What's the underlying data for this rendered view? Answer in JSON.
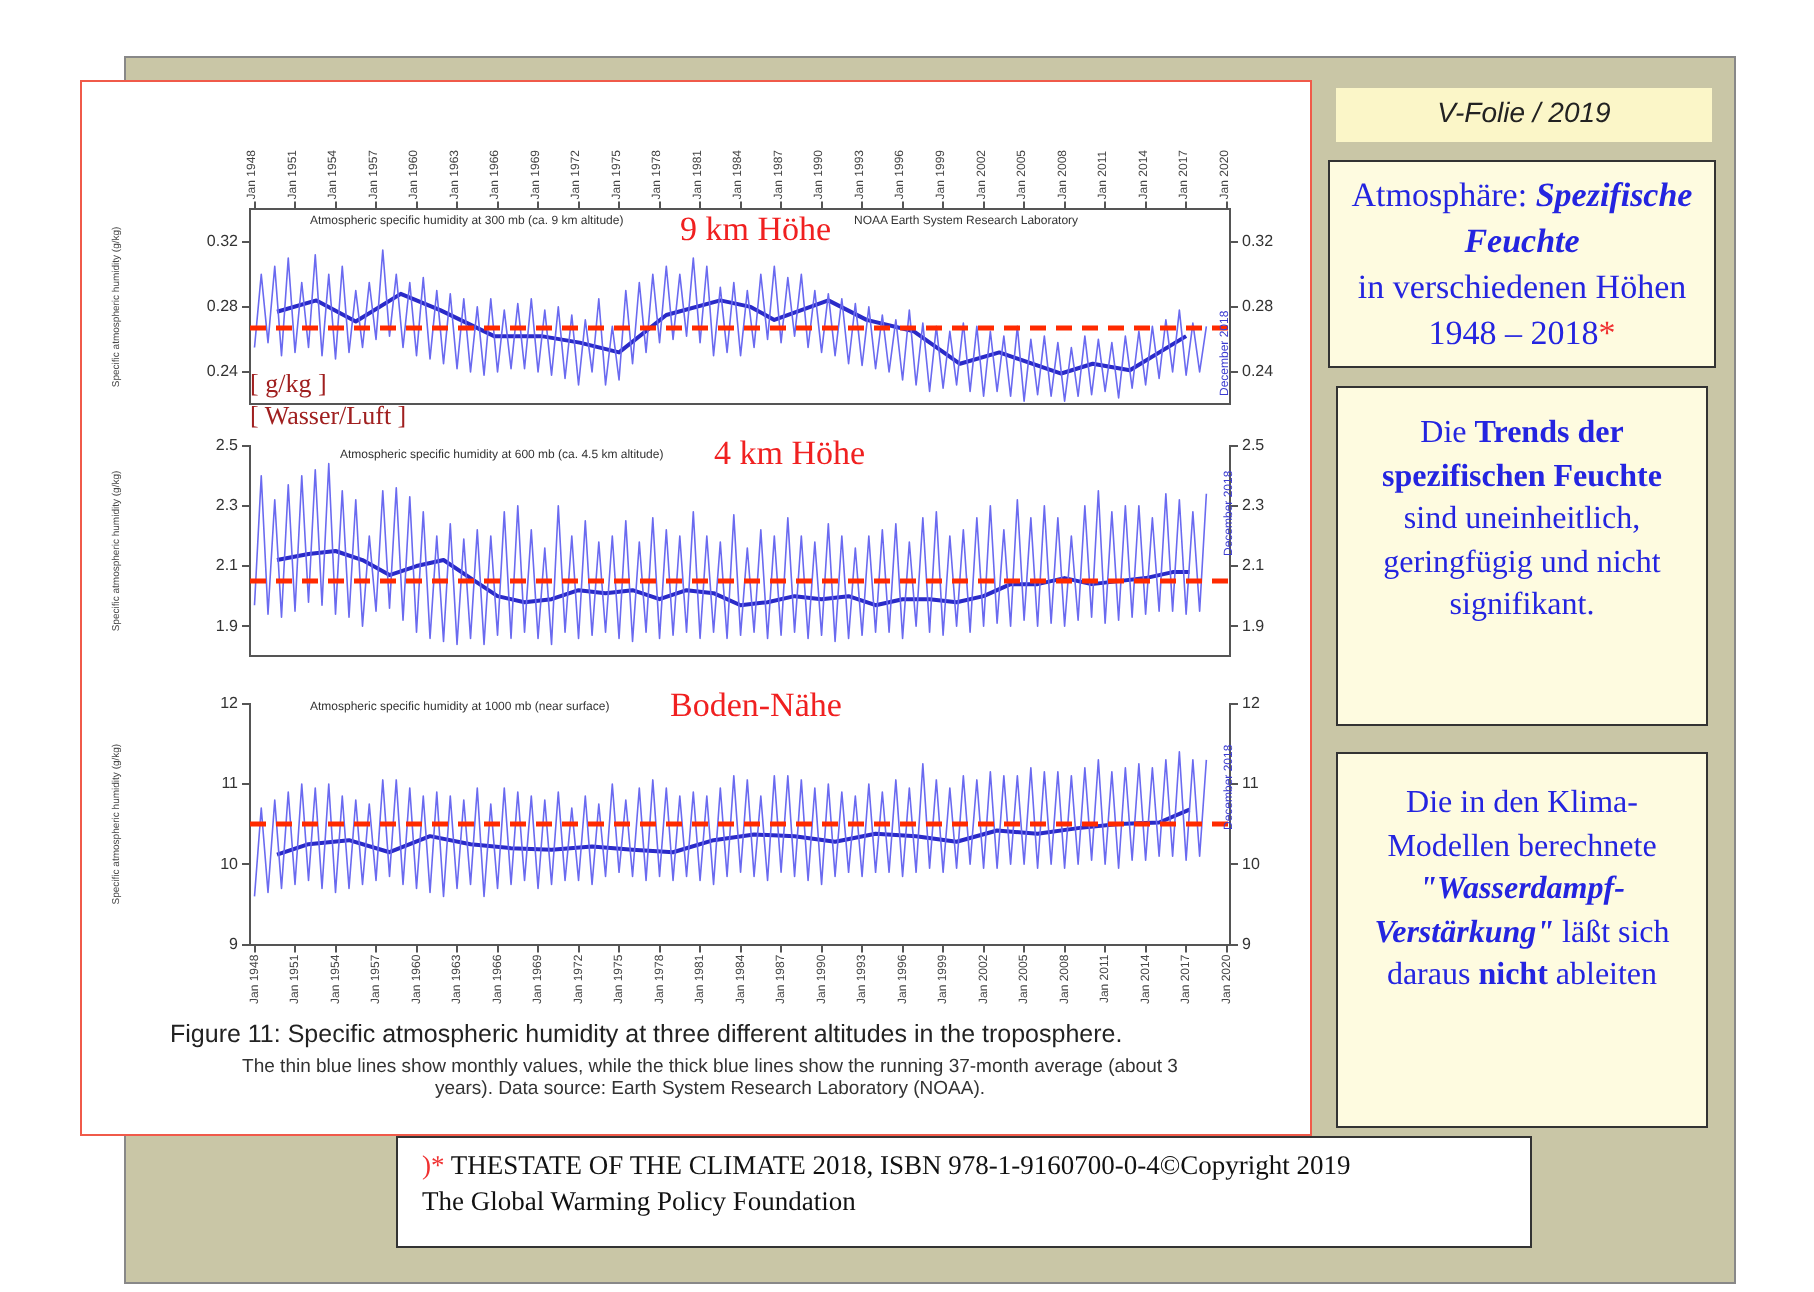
{
  "chart_data": [
    {
      "type": "line",
      "ylabel": "Specific atmospheric humidity (g/kg)",
      "xlim": [
        "1947-09",
        "2020-04"
      ],
      "x2lim": [
        "1947-09",
        "2020-04"
      ],
      "x2ticks": [
        {
          "value": "1948-01",
          "label": "Jan 1948"
        },
        {
          "value": "1951-01",
          "label": "Jan 1951"
        },
        {
          "value": "1954-01",
          "label": "Jan 1954"
        },
        {
          "value": "1957-01",
          "label": "Jan 1957"
        },
        {
          "value": "1960-01",
          "label": "Jan 1960"
        },
        {
          "value": "1963-01",
          "label": "Jan 1963"
        },
        {
          "value": "1966-01",
          "label": "Jan 1966"
        },
        {
          "value": "1969-01",
          "label": "Jan 1969"
        },
        {
          "value": "1972-01",
          "label": "Jan 1972"
        },
        {
          "value": "1975-01",
          "label": "Jan 1975"
        },
        {
          "value": "1978-01",
          "label": "Jan 1978"
        },
        {
          "value": "1981-01",
          "label": "Jan 1981"
        },
        {
          "value": "1984-01",
          "label": "Jan 1984"
        },
        {
          "value": "1987-01",
          "label": "Jan 1987"
        },
        {
          "value": "1990-01",
          "label": "Jan 1990"
        },
        {
          "value": "1993-01",
          "label": "Jan 1993"
        },
        {
          "value": "1996-01",
          "label": "Jan 1996"
        },
        {
          "value": "1999-01",
          "label": "Jan 1999"
        },
        {
          "value": "2002-01",
          "label": "Jan 2002"
        },
        {
          "value": "2005-01",
          "label": "Jan 2005"
        },
        {
          "value": "2008-01",
          "label": "Jan 2008"
        },
        {
          "value": "2011-01",
          "label": "Jan 2011"
        },
        {
          "value": "2014-01",
          "label": "Jan 2014"
        },
        {
          "value": "2017-01",
          "label": "Jan 2017"
        },
        {
          "value": "2020-01",
          "label": "Jan 2020"
        }
      ],
      "ylim": [
        0.22,
        0.34
      ],
      "yticks": [
        0.24,
        0.28,
        0.32
      ],
      "y2lim": [
        0.22,
        0.34
      ],
      "y2ticks": [
        0.24,
        0.28,
        0.32
      ],
      "x": [
        "1948-01",
        "1948-07",
        "1949-01",
        "1949-07",
        "1950-01",
        "1950-07",
        "1951-01",
        "1951-07",
        "1952-01",
        "1952-07",
        "1953-01",
        "1953-07",
        "1954-01",
        "1954-07",
        "1955-01",
        "1955-07",
        "1956-01",
        "1956-07",
        "1957-01",
        "1957-07",
        "1958-01",
        "1958-07",
        "1959-01",
        "1959-07",
        "1960-01",
        "1960-07",
        "1961-01",
        "1961-07",
        "1962-01",
        "1962-07",
        "1963-01",
        "1963-07",
        "1964-01",
        "1964-07",
        "1965-01",
        "1965-07",
        "1966-01",
        "1966-07",
        "1967-01",
        "1967-07",
        "1968-01",
        "1968-07",
        "1969-01",
        "1969-07",
        "1970-01",
        "1970-07",
        "1971-01",
        "1971-07",
        "1972-01",
        "1972-07",
        "1973-01",
        "1973-07",
        "1974-01",
        "1974-07",
        "1975-01",
        "1975-07",
        "1976-01",
        "1976-07",
        "1977-01",
        "1977-07",
        "1978-01",
        "1978-07",
        "1979-01",
        "1979-07",
        "1980-01",
        "1980-07",
        "1981-01",
        "1981-07",
        "1982-01",
        "1982-07",
        "1983-01",
        "1983-07",
        "1984-01",
        "1984-07",
        "1985-01",
        "1985-07",
        "1986-01",
        "1986-07",
        "1987-01",
        "1987-07",
        "1988-01",
        "1988-07",
        "1989-01",
        "1989-07",
        "1990-01",
        "1990-07",
        "1991-01",
        "1991-07",
        "1992-01",
        "1992-07",
        "1993-01",
        "1993-07",
        "1994-01",
        "1994-07",
        "1995-01",
        "1995-07",
        "1996-01",
        "1996-07",
        "1997-01",
        "1997-07",
        "1998-01",
        "1998-07",
        "1999-01",
        "1999-07",
        "2000-01",
        "2000-07",
        "2001-01",
        "2001-07",
        "2002-01",
        "2002-07",
        "2003-01",
        "2003-07",
        "2004-01",
        "2004-07",
        "2005-01",
        "2005-07",
        "2006-01",
        "2006-07",
        "2007-01",
        "2007-07",
        "2008-01",
        "2008-07",
        "2009-01",
        "2009-07",
        "2010-01",
        "2010-07",
        "2011-01",
        "2011-07",
        "2012-01",
        "2012-07",
        "2013-01",
        "2013-07",
        "2014-01",
        "2014-07",
        "2015-01",
        "2015-07",
        "2016-01",
        "2016-07",
        "2017-01",
        "2017-07",
        "2018-01",
        "2018-07"
      ],
      "series": [
        {
          "color": "#6a6af0",
          "values": [
            0.255,
            0.3,
            0.258,
            0.305,
            0.25,
            0.31,
            0.252,
            0.295,
            0.255,
            0.312,
            0.25,
            0.3,
            0.248,
            0.305,
            0.252,
            0.29,
            0.255,
            0.295,
            0.26,
            0.315,
            0.262,
            0.3,
            0.255,
            0.295,
            0.25,
            0.298,
            0.248,
            0.29,
            0.245,
            0.288,
            0.242,
            0.285,
            0.24,
            0.28,
            0.238,
            0.285,
            0.24,
            0.278,
            0.242,
            0.282,
            0.242,
            0.285,
            0.24,
            0.278,
            0.238,
            0.28,
            0.236,
            0.275,
            0.232,
            0.272,
            0.24,
            0.285,
            0.232,
            0.268,
            0.235,
            0.29,
            0.245,
            0.295,
            0.252,
            0.3,
            0.258,
            0.305,
            0.26,
            0.3,
            0.262,
            0.31,
            0.258,
            0.305,
            0.25,
            0.292,
            0.252,
            0.295,
            0.25,
            0.29,
            0.255,
            0.3,
            0.26,
            0.305,
            0.258,
            0.298,
            0.262,
            0.3,
            0.255,
            0.29,
            0.252,
            0.288,
            0.25,
            0.285,
            0.245,
            0.282,
            0.244,
            0.28,
            0.242,
            0.275,
            0.24,
            0.272,
            0.235,
            0.278,
            0.232,
            0.27,
            0.228,
            0.268,
            0.23,
            0.265,
            0.232,
            0.27,
            0.228,
            0.268,
            0.225,
            0.265,
            0.228,
            0.262,
            0.225,
            0.268,
            0.222,
            0.26,
            0.226,
            0.262,
            0.225,
            0.258,
            0.222,
            0.255,
            0.225,
            0.262,
            0.226,
            0.26,
            0.228,
            0.258,
            0.224,
            0.262,
            0.23,
            0.265,
            0.232,
            0.268,
            0.236,
            0.272,
            0.24,
            0.278,
            0.238,
            0.27,
            0.24,
            0.268
          ]
        },
        {
          "color": "#2a2ac8",
          "x": [
            "1949-09",
            "1952-08",
            "1955-07",
            "1958-11",
            "1961-10",
            "1965-10",
            "1969-04",
            "1972-02",
            "1975-01",
            "1978-07",
            "1982-07",
            "1984-10",
            "1986-07",
            "1990-07",
            "1993-05",
            "1996-11",
            "2000-04",
            "2003-03",
            "2007-10",
            "2010-02",
            "2012-11",
            "2017-01"
          ],
          "values": [
            0.277,
            0.284,
            0.271,
            0.288,
            0.278,
            0.262,
            0.262,
            0.258,
            0.252,
            0.275,
            0.284,
            0.28,
            0.272,
            0.284,
            0.272,
            0.265,
            0.245,
            0.252,
            0.239,
            0.245,
            0.241,
            0.262
          ]
        }
      ],
      "ref_lines": [
        {
          "axis": "y",
          "value": 0.267,
          "color": "#ff2a00",
          "line_style": "dashed"
        }
      ],
      "annotations": [
        "Atmospheric specific humidity at 300 mb (ca. 9 km altitude)",
        "NOAA Earth System Research Laboratory",
        "9 km Höhe",
        "[ g/kg ]",
        "[ Wasser/Luft ]",
        "December 2018"
      ]
    },
    {
      "type": "line",
      "ylabel": "Specific atmospheric humidity (g/kg)",
      "xlim": [
        "1947-09",
        "2020-04"
      ],
      "tick_labels": "y",
      "ylim": [
        1.8,
        2.5
      ],
      "yticks": [
        1.9,
        2.1,
        2.3,
        2.5
      ],
      "y2lim": [
        1.8,
        2.5
      ],
      "y2ticks": [
        1.9,
        2.1,
        2.3,
        2.5
      ],
      "x": [
        "1948-01",
        "1948-07",
        "1949-01",
        "1949-07",
        "1950-01",
        "1950-07",
        "1951-01",
        "1951-07",
        "1952-01",
        "1952-07",
        "1953-01",
        "1953-07",
        "1954-01",
        "1954-07",
        "1955-01",
        "1955-07",
        "1956-01",
        "1956-07",
        "1957-01",
        "1957-07",
        "1958-01",
        "1958-07",
        "1959-01",
        "1959-07",
        "1960-01",
        "1960-07",
        "1961-01",
        "1961-07",
        "1962-01",
        "1962-07",
        "1963-01",
        "1963-07",
        "1964-01",
        "1964-07",
        "1965-01",
        "1965-07",
        "1966-01",
        "1966-07",
        "1967-01",
        "1967-07",
        "1968-01",
        "1968-07",
        "1969-01",
        "1969-07",
        "1970-01",
        "1970-07",
        "1971-01",
        "1971-07",
        "1972-01",
        "1972-07",
        "1973-01",
        "1973-07",
        "1974-01",
        "1974-07",
        "1975-01",
        "1975-07",
        "1976-01",
        "1976-07",
        "1977-01",
        "1977-07",
        "1978-01",
        "1978-07",
        "1979-01",
        "1979-07",
        "1980-01",
        "1980-07",
        "1981-01",
        "1981-07",
        "1982-01",
        "1982-07",
        "1983-01",
        "1983-07",
        "1984-01",
        "1984-07",
        "1985-01",
        "1985-07",
        "1986-01",
        "1986-07",
        "1987-01",
        "1987-07",
        "1988-01",
        "1988-07",
        "1989-01",
        "1989-07",
        "1990-01",
        "1990-07",
        "1991-01",
        "1991-07",
        "1992-01",
        "1992-07",
        "1993-01",
        "1993-07",
        "1994-01",
        "1994-07",
        "1995-01",
        "1995-07",
        "1996-01",
        "1996-07",
        "1997-01",
        "1997-07",
        "1998-01",
        "1998-07",
        "1999-01",
        "1999-07",
        "2000-01",
        "2000-07",
        "2001-01",
        "2001-07",
        "2002-01",
        "2002-07",
        "2003-01",
        "2003-07",
        "2004-01",
        "2004-07",
        "2005-01",
        "2005-07",
        "2006-01",
        "2006-07",
        "2007-01",
        "2007-07",
        "2008-01",
        "2008-07",
        "2009-01",
        "2009-07",
        "2010-01",
        "2010-07",
        "2011-01",
        "2011-07",
        "2012-01",
        "2012-07",
        "2013-01",
        "2013-07",
        "2014-01",
        "2014-07",
        "2015-01",
        "2015-07",
        "2016-01",
        "2016-07",
        "2017-01",
        "2017-07",
        "2018-01",
        "2018-07"
      ],
      "series": [
        {
          "color": "#6a6af0",
          "values": [
            1.97,
            2.4,
            1.94,
            2.32,
            1.93,
            2.37,
            1.95,
            2.4,
            1.98,
            2.42,
            1.97,
            2.44,
            1.94,
            2.35,
            1.93,
            2.32,
            1.9,
            2.2,
            1.95,
            2.35,
            1.96,
            2.36,
            1.92,
            2.33,
            1.88,
            2.28,
            1.86,
            2.2,
            1.85,
            2.24,
            1.84,
            2.19,
            1.86,
            2.22,
            1.84,
            2.2,
            1.87,
            2.28,
            1.86,
            2.3,
            1.88,
            2.22,
            1.86,
            2.16,
            1.84,
            2.3,
            1.88,
            2.2,
            1.86,
            2.25,
            1.87,
            2.18,
            1.88,
            2.2,
            1.86,
            2.25,
            1.85,
            2.18,
            1.88,
            2.26,
            1.86,
            2.22,
            1.87,
            2.2,
            1.88,
            2.28,
            1.86,
            2.2,
            1.88,
            2.18,
            1.86,
            2.27,
            1.87,
            2.16,
            1.88,
            2.22,
            1.86,
            2.2,
            1.87,
            2.26,
            1.88,
            2.2,
            1.86,
            2.18,
            1.87,
            2.24,
            1.85,
            2.2,
            1.86,
            2.16,
            1.87,
            2.2,
            1.88,
            2.22,
            1.88,
            2.24,
            1.86,
            2.18,
            1.9,
            2.26,
            1.88,
            2.28,
            1.87,
            2.2,
            1.9,
            2.22,
            1.88,
            2.26,
            1.9,
            2.3,
            1.91,
            2.22,
            1.9,
            2.32,
            1.92,
            2.26,
            1.9,
            2.3,
            1.91,
            2.26,
            1.9,
            2.2,
            1.92,
            2.3,
            1.93,
            2.35,
            1.91,
            2.28,
            1.92,
            2.3,
            1.93,
            2.3,
            1.94,
            2.26,
            1.95,
            2.34,
            1.95,
            2.32,
            1.94,
            2.28,
            1.95,
            2.34
          ]
        },
        {
          "color": "#2a2ac8",
          "x": [
            "1949-09",
            "1952-01",
            "1954-01",
            "1956-01",
            "1958-01",
            "1960-01",
            "1962-01",
            "1964-01",
            "1966-01",
            "1968-01",
            "1970-01",
            "1972-01",
            "1974-01",
            "1976-01",
            "1978-01",
            "1980-01",
            "1982-01",
            "1984-01",
            "1986-01",
            "1988-01",
            "1990-01",
            "1992-01",
            "1994-01",
            "1996-01",
            "1998-01",
            "2000-01",
            "2002-01",
            "2004-01",
            "2006-01",
            "2008-01",
            "2010-01",
            "2012-01",
            "2014-01",
            "2016-01",
            "2017-04"
          ],
          "values": [
            2.12,
            2.14,
            2.15,
            2.12,
            2.07,
            2.1,
            2.12,
            2.06,
            2.0,
            1.98,
            1.99,
            2.02,
            2.01,
            2.02,
            1.99,
            2.02,
            2.01,
            1.97,
            1.98,
            2.0,
            1.99,
            2.0,
            1.97,
            1.99,
            1.99,
            1.98,
            2.0,
            2.04,
            2.04,
            2.06,
            2.04,
            2.05,
            2.06,
            2.08,
            2.08
          ]
        }
      ],
      "ref_lines": [
        {
          "axis": "y",
          "value": 2.05,
          "color": "#ff2a00",
          "line_style": "dashed"
        }
      ],
      "annotations": [
        "Atmospheric specific humidity at 600 mb (ca. 4.5 km altitude)",
        "4 km Höhe",
        "December 2018"
      ]
    },
    {
      "type": "line",
      "ylabel": "Specific atmospheric humidity (g/kg)",
      "xlim": [
        "1947-09",
        "2020-04"
      ],
      "xticks": [
        {
          "value": "1948-01",
          "label": "Jan 1948"
        },
        {
          "value": "1951-01",
          "label": "Jan 1951"
        },
        {
          "value": "1954-01",
          "label": "Jan 1954"
        },
        {
          "value": "1957-01",
          "label": "Jan 1957"
        },
        {
          "value": "1960-01",
          "label": "Jan 1960"
        },
        {
          "value": "1963-01",
          "label": "Jan 1963"
        },
        {
          "value": "1966-01",
          "label": "Jan 1966"
        },
        {
          "value": "1969-01",
          "label": "Jan 1969"
        },
        {
          "value": "1972-01",
          "label": "Jan 1972"
        },
        {
          "value": "1975-01",
          "label": "Jan 1975"
        },
        {
          "value": "1978-01",
          "label": "Jan 1978"
        },
        {
          "value": "1981-01",
          "label": "Jan 1981"
        },
        {
          "value": "1984-01",
          "label": "Jan 1984"
        },
        {
          "value": "1987-01",
          "label": "Jan 1987"
        },
        {
          "value": "1990-01",
          "label": "Jan 1990"
        },
        {
          "value": "1993-01",
          "label": "Jan 1993"
        },
        {
          "value": "1996-01",
          "label": "Jan 1996"
        },
        {
          "value": "1999-01",
          "label": "Jan 1999"
        },
        {
          "value": "2002-01",
          "label": "Jan 2002"
        },
        {
          "value": "2005-01",
          "label": "Jan 2005"
        },
        {
          "value": "2008-01",
          "label": "Jan 2008"
        },
        {
          "value": "2011-01",
          "label": "Jan 2011"
        },
        {
          "value": "2014-01",
          "label": "Jan 2014"
        },
        {
          "value": "2017-01",
          "label": "Jan 2017"
        },
        {
          "value": "2020-01",
          "label": "Jan 2020"
        }
      ],
      "ylim": [
        9,
        12
      ],
      "yticks": [
        9,
        10,
        11,
        12
      ],
      "y2lim": [
        9,
        12
      ],
      "y2ticks": [
        9,
        10,
        11,
        12
      ],
      "x": [
        "1948-01",
        "1948-07",
        "1949-01",
        "1949-07",
        "1950-01",
        "1950-07",
        "1951-01",
        "1951-07",
        "1952-01",
        "1952-07",
        "1953-01",
        "1953-07",
        "1954-01",
        "1954-07",
        "1955-01",
        "1955-07",
        "1956-01",
        "1956-07",
        "1957-01",
        "1957-07",
        "1958-01",
        "1958-07",
        "1959-01",
        "1959-07",
        "1960-01",
        "1960-07",
        "1961-01",
        "1961-07",
        "1962-01",
        "1962-07",
        "1963-01",
        "1963-07",
        "1964-01",
        "1964-07",
        "1965-01",
        "1965-07",
        "1966-01",
        "1966-07",
        "1967-01",
        "1967-07",
        "1968-01",
        "1968-07",
        "1969-01",
        "1969-07",
        "1970-01",
        "1970-07",
        "1971-01",
        "1971-07",
        "1972-01",
        "1972-07",
        "1973-01",
        "1973-07",
        "1974-01",
        "1974-07",
        "1975-01",
        "1975-07",
        "1976-01",
        "1976-07",
        "1977-01",
        "1977-07",
        "1978-01",
        "1978-07",
        "1979-01",
        "1979-07",
        "1980-01",
        "1980-07",
        "1981-01",
        "1981-07",
        "1982-01",
        "1982-07",
        "1983-01",
        "1983-07",
        "1984-01",
        "1984-07",
        "1985-01",
        "1985-07",
        "1986-01",
        "1986-07",
        "1987-01",
        "1987-07",
        "1988-01",
        "1988-07",
        "1989-01",
        "1989-07",
        "1990-01",
        "1990-07",
        "1991-01",
        "1991-07",
        "1992-01",
        "1992-07",
        "1993-01",
        "1993-07",
        "1994-01",
        "1994-07",
        "1995-01",
        "1995-07",
        "1996-01",
        "1996-07",
        "1997-01",
        "1997-07",
        "1998-01",
        "1998-07",
        "1999-01",
        "1999-07",
        "2000-01",
        "2000-07",
        "2001-01",
        "2001-07",
        "2002-01",
        "2002-07",
        "2003-01",
        "2003-07",
        "2004-01",
        "2004-07",
        "2005-01",
        "2005-07",
        "2006-01",
        "2006-07",
        "2007-01",
        "2007-07",
        "2008-01",
        "2008-07",
        "2009-01",
        "2009-07",
        "2010-01",
        "2010-07",
        "2011-01",
        "2011-07",
        "2012-01",
        "2012-07",
        "2013-01",
        "2013-07",
        "2014-01",
        "2014-07",
        "2015-01",
        "2015-07",
        "2016-01",
        "2016-07",
        "2017-01",
        "2017-07",
        "2018-01",
        "2018-07"
      ],
      "series": [
        {
          "color": "#6a6af0",
          "values": [
            9.6,
            10.7,
            9.65,
            10.8,
            9.7,
            10.9,
            9.75,
            11.0,
            9.8,
            10.95,
            9.7,
            11.0,
            9.65,
            10.85,
            9.7,
            10.8,
            9.75,
            10.75,
            9.8,
            11.05,
            9.85,
            11.05,
            9.75,
            10.95,
            9.7,
            10.85,
            9.65,
            10.9,
            9.6,
            10.85,
            9.7,
            10.8,
            9.75,
            10.95,
            9.6,
            10.75,
            9.7,
            10.95,
            9.75,
            10.9,
            9.8,
            10.85,
            9.7,
            10.8,
            9.75,
            10.9,
            9.8,
            10.7,
            9.8,
            10.85,
            9.75,
            10.75,
            9.85,
            11.0,
            9.9,
            10.8,
            9.85,
            10.95,
            9.8,
            11.05,
            9.85,
            10.95,
            9.8,
            10.85,
            9.85,
            10.9,
            9.8,
            10.85,
            9.75,
            10.95,
            9.85,
            11.1,
            9.9,
            11.05,
            9.85,
            10.85,
            9.8,
            11.1,
            9.9,
            11.1,
            9.85,
            11.05,
            9.8,
            10.95,
            9.75,
            11.0,
            9.85,
            10.9,
            9.9,
            10.85,
            9.85,
            11.0,
            9.9,
            10.9,
            9.9,
            11.05,
            9.85,
            10.95,
            9.9,
            11.25,
            9.95,
            11.05,
            9.9,
            10.95,
            9.95,
            11.1,
            10.0,
            11.05,
            9.95,
            11.15,
            9.95,
            11.1,
            10.0,
            11.1,
            10.0,
            11.2,
            9.95,
            11.15,
            10.0,
            11.15,
            9.95,
            11.1,
            10.0,
            11.2,
            10.05,
            11.3,
            10.0,
            11.15,
            9.95,
            11.2,
            10.05,
            11.25,
            10.05,
            11.2,
            10.1,
            11.3,
            10.1,
            11.4,
            10.05,
            11.3,
            10.1,
            11.3
          ]
        },
        {
          "color": "#2a2ac8",
          "x": [
            "1949-09",
            "1952-01",
            "1955-01",
            "1958-01",
            "1961-01",
            "1964-01",
            "1967-01",
            "1970-01",
            "1973-01",
            "1976-01",
            "1979-01",
            "1982-01",
            "1985-01",
            "1988-01",
            "1991-01",
            "1994-01",
            "1997-01",
            "2000-01",
            "2003-01",
            "2006-01",
            "2009-01",
            "2012-01",
            "2015-01",
            "2017-04"
          ],
          "values": [
            10.12,
            10.25,
            10.3,
            10.15,
            10.35,
            10.25,
            10.2,
            10.18,
            10.22,
            10.18,
            10.15,
            10.3,
            10.37,
            10.35,
            10.28,
            10.38,
            10.35,
            10.28,
            10.42,
            10.38,
            10.45,
            10.5,
            10.52,
            10.68
          ]
        }
      ],
      "ref_lines": [
        {
          "axis": "y",
          "value": 10.5,
          "color": "#ff2a00",
          "line_style": "dashed"
        }
      ],
      "annotations": [
        "Atmospheric specific humidity at 1000 mb (near surface)",
        "Boden-Nähe",
        "December 2018",
        "Figure 11: Specific atmospheric humidity at three different altitudes in the troposphere.",
        "The thin blue lines show monthly values, while the thick blue lines show the running 37-month average (about 3 years). Data source: Earth System Research Laboratory (NOAA)."
      ]
    },
    {
      "type": "other",
      "annotations": [
        "V-Folie / 2019",
        "Atmosphäre: ",
        "Spezifische Feuchte",
        "in verschiedenen Höhen 1948 – 2018",
        "*",
        "Die ",
        "Trends der spezifischen Feuchte",
        " sind uneinheitlich, geringfügig und nicht signifikant.",
        "Die in den Klima-Modellen berechnete ",
        "\"Wasserdampf-Verstärkung\"",
        " läßt sich daraus ",
        "nicht",
        " ableiten",
        ")* ",
        "THESTATE OF THE CLIMATE 2018, ISBN 978-1-9160700-0-4©Copyright 2019",
        "The Global Warming Policy Foundation"
      ]
    }
  ]
}
